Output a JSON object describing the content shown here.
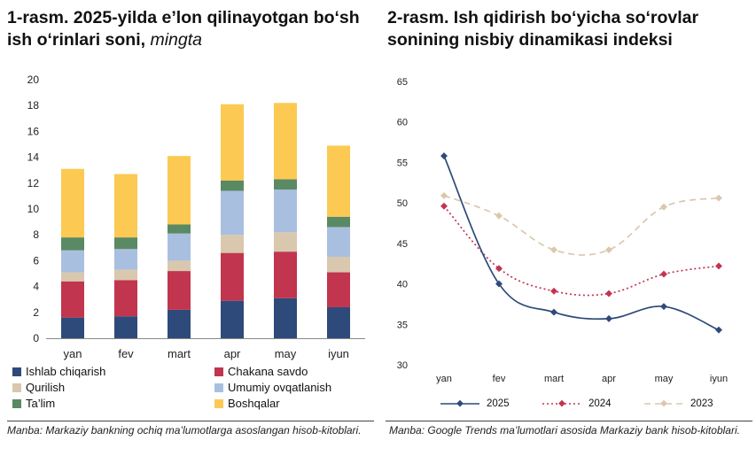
{
  "left": {
    "title": "1-rasm. 2025-yilda e’lon qilinayotgan bo‘sh ish o‘rinlari soni,",
    "title_unit": "mingta",
    "source": "Manba: Markaziy bankning ochiq ma’lumotlarga asoslangan hisob-kitoblari."
  },
  "right": {
    "title": "2-rasm. Ish qidirish bo‘yicha so‘rovlar sonining nisbiy dinamikasi indeksi",
    "source": "Manba: Google Trends ma’lumotlari asosida Markaziy bank hisob-kitoblari."
  },
  "chart_data": [
    {
      "type": "bar",
      "stacked": true,
      "title": "1-rasm. 2025-yilda e’lon qilinayotgan bo‘sh ish o‘rinlari soni, mingta",
      "categories": [
        "yan",
        "fev",
        "mart",
        "apr",
        "may",
        "iyun"
      ],
      "ylim": [
        0,
        20
      ],
      "yticks": [
        0,
        2,
        4,
        6,
        8,
        10,
        12,
        14,
        16,
        18,
        20
      ],
      "grid": false,
      "legend_position": "bottom",
      "series": [
        {
          "name": "Ishlab chiqarish",
          "color": "#2e4a7a",
          "values": [
            1.6,
            1.7,
            2.2,
            2.9,
            3.1,
            2.4
          ]
        },
        {
          "name": "Chakana savdo",
          "color": "#c1354f",
          "values": [
            2.8,
            2.8,
            3.0,
            3.7,
            3.6,
            2.7
          ]
        },
        {
          "name": "Qurilish",
          "color": "#d9c8ad",
          "values": [
            0.7,
            0.8,
            0.8,
            1.4,
            1.5,
            1.2
          ]
        },
        {
          "name": "Umumiy ovqatlanish",
          "color": "#a9bfe0",
          "values": [
            1.7,
            1.6,
            2.1,
            3.4,
            3.3,
            2.3
          ]
        },
        {
          "name": "Ta’lim",
          "color": "#5a8a63",
          "values": [
            1.0,
            0.9,
            0.7,
            0.8,
            0.8,
            0.8
          ]
        },
        {
          "name": "Boshqalar",
          "color": "#fcc953",
          "values": [
            5.3,
            4.9,
            5.3,
            5.9,
            5.9,
            5.5
          ]
        }
      ]
    },
    {
      "type": "line",
      "title": "2-rasm. Ish qidirish bo‘yicha so‘rovlar sonining nisbiy dinamikasi indeksi",
      "categories": [
        "yan",
        "fev",
        "mart",
        "apr",
        "may",
        "iyun"
      ],
      "ylim": [
        30,
        65
      ],
      "yticks": [
        30,
        35,
        40,
        45,
        50,
        55,
        60,
        65
      ],
      "grid": false,
      "legend_position": "bottom",
      "series": [
        {
          "name": "2025",
          "color": "#2e4a7a",
          "style": "solid",
          "values": [
            55.8,
            40.0,
            36.5,
            35.7,
            37.2,
            34.3
          ]
        },
        {
          "name": "2024",
          "color": "#c1354f",
          "style": "dotted",
          "values": [
            49.6,
            41.9,
            39.1,
            38.8,
            41.2,
            42.2
          ]
        },
        {
          "name": "2023",
          "color": "#d9c8ad",
          "style": "dashed",
          "values": [
            50.9,
            48.4,
            44.2,
            44.2,
            49.5,
            50.6
          ]
        }
      ]
    }
  ]
}
